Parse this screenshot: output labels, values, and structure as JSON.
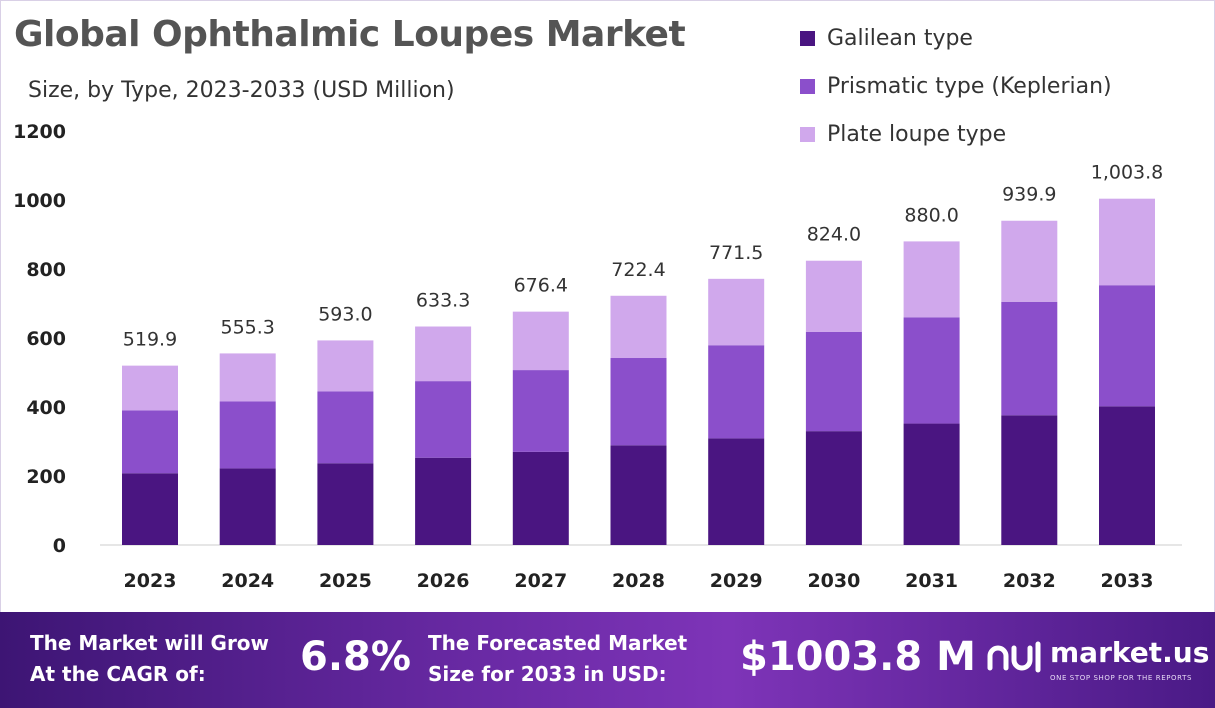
{
  "header": {
    "title": "Global Ophthalmic Loupes Market",
    "subtitle": "Size, by Type, 2023-2033 (USD Million)"
  },
  "legend": [
    {
      "label": "Galilean type",
      "color": "#4a1581"
    },
    {
      "label": "Prismatic type (Keplerian)",
      "color": "#8b4fcb"
    },
    {
      "label": "Plate loupe type",
      "color": "#d0a8ec"
    }
  ],
  "chart_data": {
    "type": "bar",
    "stacked": true,
    "categories": [
      "2023",
      "2024",
      "2025",
      "2026",
      "2027",
      "2028",
      "2029",
      "2030",
      "2031",
      "2032",
      "2033"
    ],
    "series": [
      {
        "name": "Galilean type",
        "color": "#4a1581",
        "values": [
          208,
          222,
          237,
          253,
          270,
          289,
          309,
          330,
          352,
          376,
          402
        ]
      },
      {
        "name": "Prismatic type (Keplerian)",
        "color": "#8b4fcb",
        "values": [
          182,
          194,
          208,
          222,
          237,
          253,
          270,
          288,
          308,
          329,
          351
        ]
      },
      {
        "name": "Plate loupe type",
        "color": "#d0a8ec",
        "values": [
          129.9,
          139.3,
          148.0,
          158.3,
          169.4,
          180.4,
          192.5,
          206.0,
          220.0,
          234.9,
          250.8
        ]
      }
    ],
    "totals": [
      519.9,
      555.3,
      593.0,
      633.3,
      676.4,
      722.4,
      771.5,
      824.0,
      880.0,
      939.9,
      1003.8
    ],
    "total_labels": [
      "519.9",
      "555.3",
      "593.0",
      "633.3",
      "676.4",
      "722.4",
      "771.5",
      "824.0",
      "880.0",
      "939.9",
      "1,003.8"
    ],
    "yticks": [
      "0",
      "200",
      "400",
      "600",
      "800",
      "1000",
      "1200"
    ],
    "ylim": [
      0,
      1200
    ],
    "grid": false
  },
  "footer": {
    "cagr_label_line1": "The Market will Grow",
    "cagr_label_line2": "At the CAGR of:",
    "cagr_value": "6.8%",
    "size_label_line1": "The Forecasted Market",
    "size_label_line2": "Size for 2033 in USD:",
    "size_value": "$1003.8 M",
    "logo_text": "market.us",
    "logo_tagline": "ONE STOP SHOP FOR THE REPORTS"
  }
}
